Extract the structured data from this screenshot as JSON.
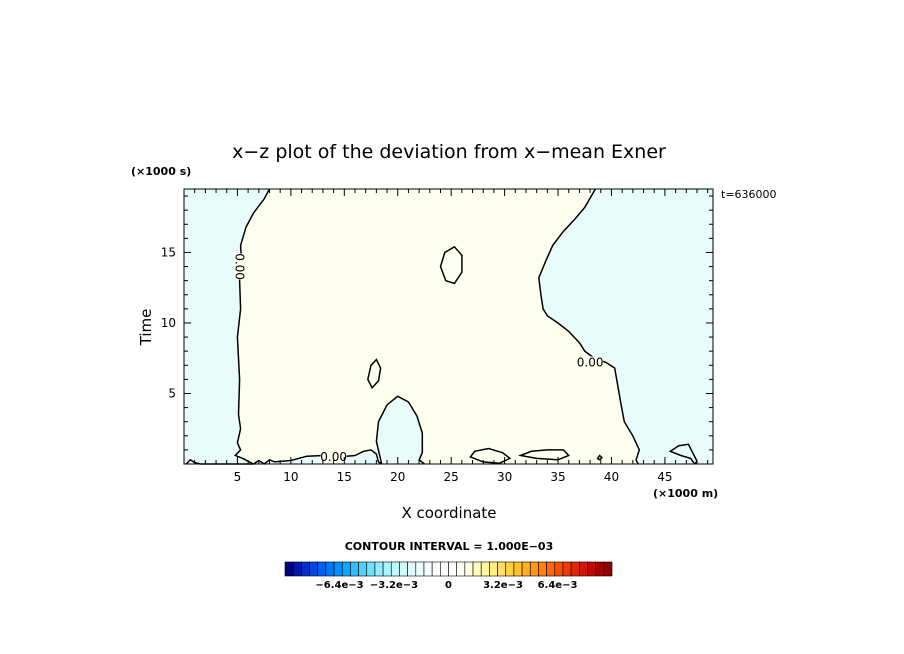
{
  "chart_data": {
    "type": "contour",
    "title": "x−z plot of the deviation from x−mean Exner",
    "xlabel": "X coordinate",
    "ylabel": "Time",
    "x_unit": "(×1000 m)",
    "y_unit": "(×1000 s)",
    "time_label": "t=636000",
    "xlim": [
      0,
      49.5
    ],
    "ylim": [
      0,
      19.5
    ],
    "x_ticks": [
      5,
      10,
      15,
      20,
      25,
      30,
      35,
      40,
      45
    ],
    "y_ticks": [
      5,
      10,
      15
    ],
    "contour_level_labels": [
      {
        "text": "0.00",
        "x": 14.0,
        "y": 0.5
      },
      {
        "text": "0.00",
        "x": 5.2,
        "y": 14.0,
        "rotated": true
      },
      {
        "text": "0.00",
        "x": 38.0,
        "y": 7.2
      }
    ],
    "regions": {
      "positive_fill": "#fffff0",
      "negative_fill": "#e8fcfc"
    },
    "contours": [
      {
        "name": "left-boundary",
        "points": [
          [
            8,
            19.5
          ],
          [
            7.5,
            18.8
          ],
          [
            6.5,
            17.8
          ],
          [
            5.8,
            16.8
          ],
          [
            5.3,
            15.5
          ],
          [
            5.4,
            14.2
          ],
          [
            5.2,
            13
          ],
          [
            5.3,
            11
          ],
          [
            5.0,
            9
          ],
          [
            5.2,
            6
          ],
          [
            5.1,
            3.5
          ],
          [
            5.3,
            2.5
          ],
          [
            5.0,
            1.5
          ],
          [
            5.3,
            1.0
          ],
          [
            4.8,
            0.6
          ],
          [
            5.5,
            0.4
          ],
          [
            6.5,
            0.0
          ]
        ]
      },
      {
        "name": "right-boundary",
        "points": [
          [
            38.5,
            19.5
          ],
          [
            37.5,
            18.2
          ],
          [
            36.5,
            17.3
          ],
          [
            35.5,
            16.5
          ],
          [
            34.5,
            15.5
          ],
          [
            33.8,
            14.3
          ],
          [
            33.2,
            13.2
          ],
          [
            33.4,
            12
          ],
          [
            33.6,
            11
          ],
          [
            34.0,
            10.5
          ],
          [
            35.0,
            10
          ],
          [
            36.0,
            9.4
          ],
          [
            37.0,
            8.6
          ],
          [
            37.5,
            8.0
          ],
          [
            38.4,
            7.5
          ],
          [
            39.5,
            7.2
          ],
          [
            40.3,
            6.8
          ],
          [
            40.6,
            5.5
          ],
          [
            40.9,
            4.2
          ],
          [
            41.2,
            3.0
          ],
          [
            42.0,
            2.0
          ],
          [
            42.6,
            1.0
          ],
          [
            42.3,
            0.3
          ],
          [
            42.5,
            0.0
          ]
        ]
      },
      {
        "name": "bottom-band",
        "points": [
          [
            0.2,
            0.0
          ],
          [
            0.6,
            0.3
          ],
          [
            1.0,
            0.1
          ],
          [
            1.5,
            0.0
          ],
          [
            6.5,
            0.0
          ],
          [
            7.0,
            0.25
          ],
          [
            7.5,
            0.0
          ],
          [
            8.0,
            0.3
          ],
          [
            8.5,
            0.15
          ],
          [
            10.0,
            0.25
          ],
          [
            11.5,
            0.55
          ],
          [
            13.0,
            0.6
          ],
          [
            14.5,
            0.5
          ],
          [
            16.0,
            0.6
          ],
          [
            16.8,
            0.9
          ],
          [
            17.5,
            1.0
          ],
          [
            18.0,
            0.7
          ],
          [
            18.2,
            0.15
          ],
          [
            18.5,
            0.0
          ]
        ]
      },
      {
        "name": "dome-base",
        "points": [
          [
            18.5,
            0.0
          ],
          [
            18.0,
            1.6
          ],
          [
            18.2,
            3.0
          ],
          [
            19.0,
            4.2
          ],
          [
            20.0,
            4.8
          ],
          [
            21.0,
            4.4
          ],
          [
            21.8,
            3.4
          ],
          [
            22.3,
            2.2
          ],
          [
            22.3,
            0.8
          ],
          [
            22.0,
            0.3
          ],
          [
            22.5,
            0.0
          ]
        ]
      },
      {
        "name": "small-closed-1",
        "closed": true,
        "points": [
          [
            24.0,
            14.0
          ],
          [
            24.4,
            15.0
          ],
          [
            25.3,
            15.4
          ],
          [
            26.0,
            14.8
          ],
          [
            26.0,
            13.6
          ],
          [
            25.3,
            12.8
          ],
          [
            24.5,
            13.0
          ]
        ]
      },
      {
        "name": "small-closed-2",
        "closed": true,
        "points": [
          [
            17.2,
            6.0
          ],
          [
            17.5,
            7.0
          ],
          [
            18.0,
            7.4
          ],
          [
            18.4,
            6.8
          ],
          [
            18.2,
            5.9
          ],
          [
            17.6,
            5.4
          ]
        ]
      },
      {
        "name": "small-closed-3",
        "closed": true,
        "points": [
          [
            26.8,
            0.5
          ],
          [
            27.2,
            0.9
          ],
          [
            28.5,
            1.1
          ],
          [
            29.8,
            0.8
          ],
          [
            30.5,
            0.4
          ],
          [
            29.5,
            0.05
          ],
          [
            28.0,
            0.15
          ]
        ]
      },
      {
        "name": "small-closed-4",
        "closed": true,
        "points": [
          [
            31.5,
            0.6
          ],
          [
            32.5,
            0.9
          ],
          [
            34.0,
            1.0
          ],
          [
            35.5,
            1.0
          ],
          [
            36.0,
            0.6
          ],
          [
            35.0,
            0.3
          ],
          [
            33.0,
            0.4
          ]
        ]
      },
      {
        "name": "small-closed-5",
        "closed": true,
        "points": [
          [
            38.7,
            0.4
          ],
          [
            38.9,
            0.6
          ],
          [
            39.1,
            0.45
          ],
          [
            38.9,
            0.3
          ]
        ]
      },
      {
        "name": "corner-right",
        "points": [
          [
            47.8,
            0.0
          ],
          [
            47.4,
            0.4
          ],
          [
            46.5,
            0.6
          ],
          [
            45.5,
            0.9
          ],
          [
            46.3,
            1.3
          ],
          [
            47.2,
            1.4
          ],
          [
            47.6,
            0.8
          ],
          [
            48.0,
            0.2
          ],
          [
            47.8,
            0.0
          ]
        ]
      }
    ]
  },
  "colorbar": {
    "title": "CONTOUR INTERVAL = 1.000E−03",
    "tick_labels": [
      "−6.4e−3",
      "−3.2e−3",
      "0",
      "3.2e−3",
      "6.4e−3"
    ],
    "tick_values": [
      -0.0064,
      -0.0032,
      0,
      0.0032,
      0.0064
    ],
    "range": [
      -0.0096,
      0.0096
    ],
    "n_boxes": 40,
    "colors": [
      "#000080",
      "#0018a8",
      "#0030c8",
      "#0048e0",
      "#0060f0",
      "#0078f8",
      "#0090ff",
      "#10a8ff",
      "#30c0ff",
      "#50d0ff",
      "#70e0ff",
      "#90ecff",
      "#a8f4ff",
      "#c0f8ff",
      "#d0fcfc",
      "#e0fcfc",
      "#ecfefe",
      "#f4ffff",
      "#fafffb",
      "#ffffff",
      "#ffffff",
      "#fffff4",
      "#ffffe0",
      "#fffcc0",
      "#fff8a0",
      "#fff080",
      "#ffe060",
      "#ffd040",
      "#ffc030",
      "#ffb020",
      "#ff9818",
      "#ff8010",
      "#ff6808",
      "#f85000",
      "#f03800",
      "#e02800",
      "#d01800",
      "#c00800",
      "#a80000",
      "#900000"
    ]
  }
}
